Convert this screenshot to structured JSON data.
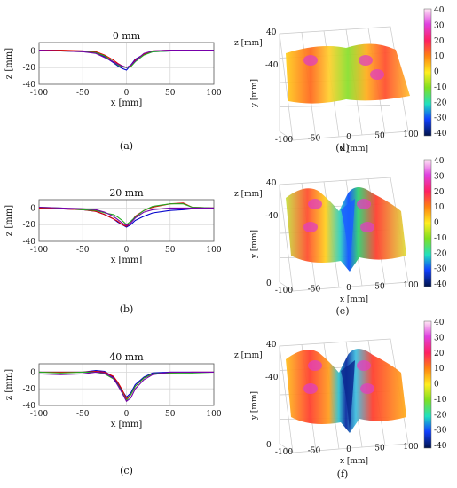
{
  "colors": {
    "series": [
      "#0000cc",
      "#dd0000",
      "#22aa22",
      "#7700aa"
    ]
  },
  "profiles": [
    {
      "title": "0 mm",
      "caption": "(a)",
      "xlabel": "x [mm]",
      "ylabel": "z [mm]",
      "yticks": [
        "0",
        "-20",
        "-40"
      ]
    },
    {
      "title": "20 mm",
      "caption": "(b)",
      "xlabel": "x [mm]",
      "ylabel": "z [mm]",
      "yticks": [
        "0",
        "-20",
        "-40"
      ]
    },
    {
      "title": "40 mm",
      "caption": "(c)",
      "xlabel": "x [mm]",
      "ylabel": "z [mm]",
      "yticks": [
        "0",
        "-20",
        "-40"
      ]
    }
  ],
  "xticks": [
    "-100",
    "-50",
    "0",
    "50",
    "100"
  ],
  "surfaces": [
    {
      "caption": "(d)",
      "zlabel": "z [mm]",
      "ylabel": "y [mm]",
      "xlabel": "x [mm]",
      "ztick": "40",
      "ytick": "-40",
      "xticks": [
        "-100",
        "-50",
        "0",
        "50",
        "100"
      ],
      "cbar": [
        "40",
        "30",
        "20",
        "10",
        "0",
        "-10",
        "-20",
        "-30",
        "-40"
      ]
    },
    {
      "caption": "(e)",
      "zlabel": "z [mm]",
      "ylabel": "y [mm]",
      "xlabel": "x [mm]",
      "ztick": "40",
      "ytick": "-40",
      "ytick0": "0",
      "xticks": [
        "-100",
        "-50",
        "0",
        "50",
        "100"
      ],
      "cbar": [
        "40",
        "30",
        "20",
        "10",
        "0",
        "-10",
        "-20",
        "-30",
        "-40"
      ]
    },
    {
      "caption": "(f)",
      "zlabel": "z [mm]",
      "ylabel": "y [mm]",
      "xlabel": "x [mm]",
      "ztick": "40",
      "ytick": "-40",
      "ytick0": "0",
      "xticks": [
        "-100",
        "-50",
        "0",
        "50",
        "100"
      ],
      "cbar": [
        "40",
        "30",
        "20",
        "10",
        "0",
        "-10",
        "-20",
        "-30",
        "-40"
      ]
    }
  ],
  "chart_data": [
    {
      "type": "line",
      "title": "0 mm",
      "xlabel": "x [mm]",
      "ylabel": "z [mm]",
      "xlim": [
        -100,
        100
      ],
      "ylim": [
        -40,
        10
      ],
      "x": [
        -100,
        -75,
        -50,
        -35,
        -25,
        -15,
        -10,
        -5,
        0,
        5,
        10,
        20,
        30,
        50,
        75,
        100
      ],
      "series": [
        {
          "values": [
            0,
            0,
            0,
            -2,
            -7,
            -14,
            -18,
            -21,
            -23,
            -17,
            -10,
            -4,
            -1,
            0,
            0,
            0
          ]
        },
        {
          "values": [
            1,
            1,
            0,
            -1,
            -5,
            -11,
            -15,
            -18,
            -20,
            -18,
            -11,
            -4,
            0,
            1,
            1,
            1
          ]
        },
        {
          "values": [
            0,
            0,
            -1,
            -2,
            -6,
            -13,
            -17,
            -19,
            -20,
            -19,
            -13,
            -5,
            -1,
            0,
            0,
            0
          ]
        },
        {
          "values": [
            1,
            0,
            -1,
            -3,
            -8,
            -13,
            -16,
            -18,
            -20,
            -17,
            -12,
            -3,
            0,
            1,
            1,
            1
          ]
        }
      ]
    },
    {
      "type": "line",
      "title": "20 mm",
      "xlabel": "x [mm]",
      "ylabel": "z [mm]",
      "xlim": [
        -100,
        100
      ],
      "ylim": [
        -40,
        10
      ],
      "x": [
        -100,
        -75,
        -50,
        -35,
        -25,
        -15,
        -10,
        -5,
        0,
        5,
        10,
        20,
        30,
        50,
        65,
        75,
        100
      ],
      "series": [
        {
          "values": [
            0,
            -1,
            -2,
            -4,
            -8,
            -13,
            -17,
            -20,
            -23,
            -20,
            -15,
            -10,
            -6,
            -3,
            -2,
            -1,
            0
          ]
        },
        {
          "values": [
            0,
            -1,
            -2,
            -4,
            -8,
            -13,
            -16,
            -20,
            -22,
            -18,
            -10,
            -3,
            1,
            5,
            6,
            1,
            0
          ]
        },
        {
          "values": [
            1,
            0,
            -2,
            -3,
            -6,
            -8,
            -11,
            -15,
            -20,
            -16,
            -11,
            -3,
            2,
            5,
            5,
            1,
            0
          ]
        },
        {
          "values": [
            1,
            0,
            -1,
            -2,
            -5,
            -10,
            -14,
            -18,
            -21,
            -18,
            -12,
            -5,
            -2,
            0,
            0,
            0,
            0
          ]
        }
      ]
    },
    {
      "type": "line",
      "title": "40 mm",
      "xlabel": "x [mm]",
      "ylabel": "z [mm]",
      "xlim": [
        -100,
        100
      ],
      "ylim": [
        -40,
        10
      ],
      "x": [
        -100,
        -75,
        -50,
        -35,
        -25,
        -15,
        -10,
        -5,
        0,
        5,
        10,
        20,
        30,
        50,
        75,
        100
      ],
      "series": [
        {
          "values": [
            0,
            0,
            0,
            2,
            1,
            -6,
            -14,
            -22,
            -30,
            -25,
            -15,
            -6,
            -1,
            0,
            0,
            0
          ]
        },
        {
          "values": [
            0,
            0,
            0,
            1,
            0,
            -5,
            -12,
            -21,
            -32,
            -27,
            -17,
            -7,
            -2,
            -1,
            0,
            0
          ]
        },
        {
          "values": [
            0,
            -1,
            0,
            0,
            -2,
            -8,
            -15,
            -24,
            -34,
            -27,
            -17,
            -7,
            -2,
            -1,
            -1,
            0
          ]
        },
        {
          "values": [
            -2,
            -3,
            -2,
            0,
            -1,
            -7,
            -16,
            -25,
            -35,
            -31,
            -20,
            -9,
            -3,
            0,
            0,
            0
          ]
        }
      ]
    }
  ]
}
